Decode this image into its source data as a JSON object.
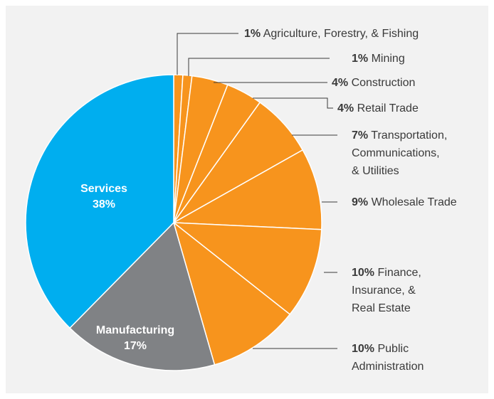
{
  "chart_data": {
    "type": "pie",
    "categories": [
      "Agriculture, Forestry, & Fishing",
      "Mining",
      "Construction",
      "Retail Trade",
      "Transportation,\nCommunications,\n& Utilities",
      "Wholesale Trade",
      "Finance,\nInsurance, &\nReal Estate",
      "Public\nAdministration",
      "Manufacturing",
      "Services"
    ],
    "values": [
      1,
      1,
      4,
      4,
      7,
      9,
      10,
      10,
      17,
      38
    ],
    "value_labels": [
      "1%",
      "1%",
      "4%",
      "4%",
      "7%",
      "9%",
      "10%",
      "10%",
      "17%",
      "38%"
    ],
    "colors": [
      "#f7941d",
      "#f7941d",
      "#f7941d",
      "#f7941d",
      "#f7941d",
      "#f7941d",
      "#f7941d",
      "#f7941d",
      "#808285",
      "#00aeef"
    ]
  }
}
